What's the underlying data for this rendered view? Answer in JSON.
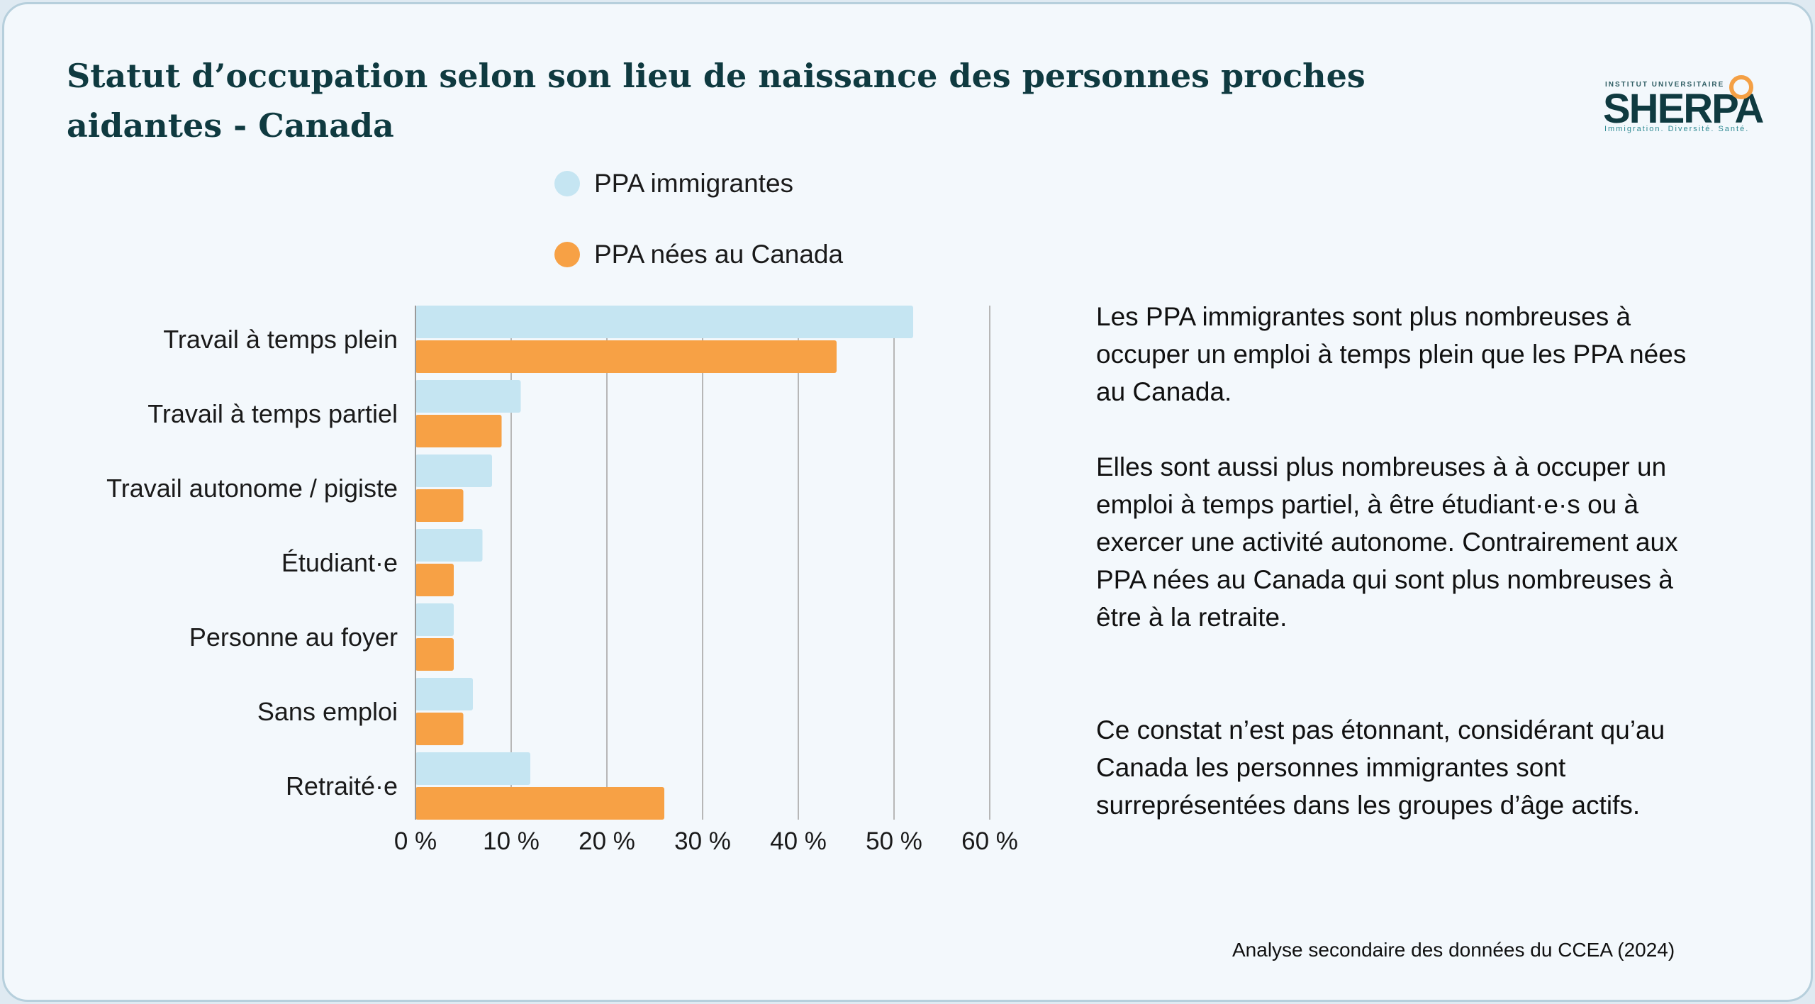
{
  "header": {
    "title": "Statut d’occupation selon son lieu de naissance des personnes proches aidantes - Canada"
  },
  "logo": {
    "top_text": "INSTITUT UNIVERSITAIRE",
    "wordmark": "SHERPA",
    "tagline": "Immigration. Diversité. Santé.",
    "accent_color": "#f4a045"
  },
  "legend": {
    "items": [
      {
        "label": "PPA immigrantes",
        "color": "#c5e5f2"
      },
      {
        "label": "PPA nées au Canada",
        "color": "#f7a145"
      }
    ]
  },
  "chart_data": {
    "type": "bar",
    "orientation": "horizontal",
    "categories": [
      "Travail à temps plein",
      "Travail à temps partiel",
      "Travail autonome / pigiste",
      "Étudiant·e",
      "Personne au foyer",
      "Sans emploi",
      "Retraité·e"
    ],
    "series": [
      {
        "name": "PPA immigrantes",
        "color": "#c5e5f2",
        "values": [
          52,
          11,
          8,
          7,
          4,
          6,
          12
        ]
      },
      {
        "name": "PPA nées au Canada",
        "color": "#f7a145",
        "values": [
          44,
          9,
          5,
          4,
          4,
          5,
          26
        ]
      }
    ],
    "xlim": [
      0,
      60
    ],
    "xticks": [
      0,
      10,
      20,
      30,
      40,
      50,
      60
    ],
    "tick_labels": [
      "0 %",
      "10 %",
      "20 %",
      "30 %",
      "40 %",
      "50 %",
      "60 %"
    ],
    "grid": "vertical",
    "legend_position": "top"
  },
  "notes": {
    "p1": "Les PPA immigrantes sont plus nombreuses à occuper un emploi à temps plein que les PPA nées au Canada.",
    "p2": "Elles sont aussi plus nombreuses à à occuper un emploi à temps partiel, à être étudiant·e·s ou à exercer une activité autonome. Contrairement aux PPA nées au Canada qui sont plus nombreuses à être à la retraite.",
    "p3": "Ce constat n’est pas étonnant, considérant qu’au Canada les personnes immigrantes sont surreprésentées dans les groupes d’âge actifs."
  },
  "footer": {
    "source": "Analyse secondaire des données du CCEA (2024)"
  }
}
